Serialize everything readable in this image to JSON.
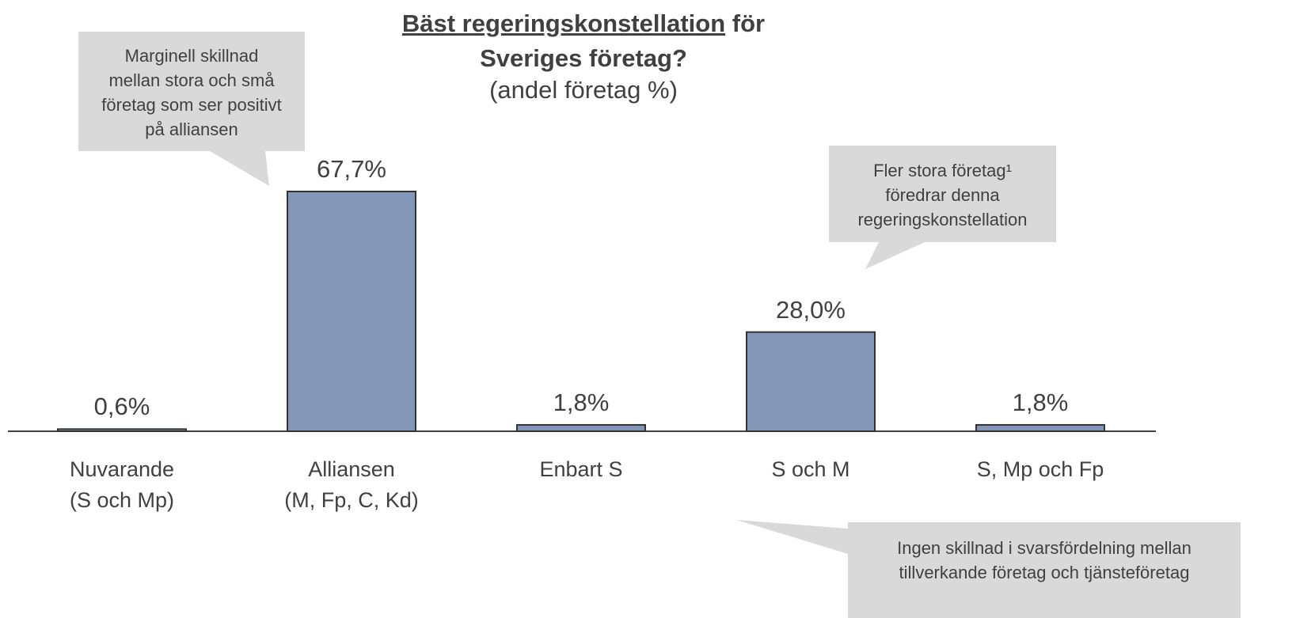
{
  "chart_data": {
    "type": "bar",
    "title": [
      "Bäst regeringskonstellation",
      "för",
      "Sveriges företag?"
    ],
    "subtitle": "(andel företag %)",
    "categories": [
      "Nuvarande\n(S och Mp)",
      "Alliansen\n(M, Fp, C, Kd)",
      "Enbart S",
      "S och M",
      "S, Mp och Fp"
    ],
    "values": [
      0.6,
      67.7,
      1.8,
      28.0,
      1.8
    ],
    "value_labels": [
      "0,6%",
      "67,7%",
      "1,8%",
      "28,0%",
      "1,8%"
    ],
    "color": "#8497b8",
    "annotations": [
      "Marginell skillnad\nmellan stora och små\nföretag som ser positivt\npå alliansen",
      "Fler stora företag¹\nföredrar denna\nregeringskonstellation",
      "Ingen skillnad i svarsfördelning mellan\ntillverkande företag och tjänsteföretag"
    ]
  }
}
